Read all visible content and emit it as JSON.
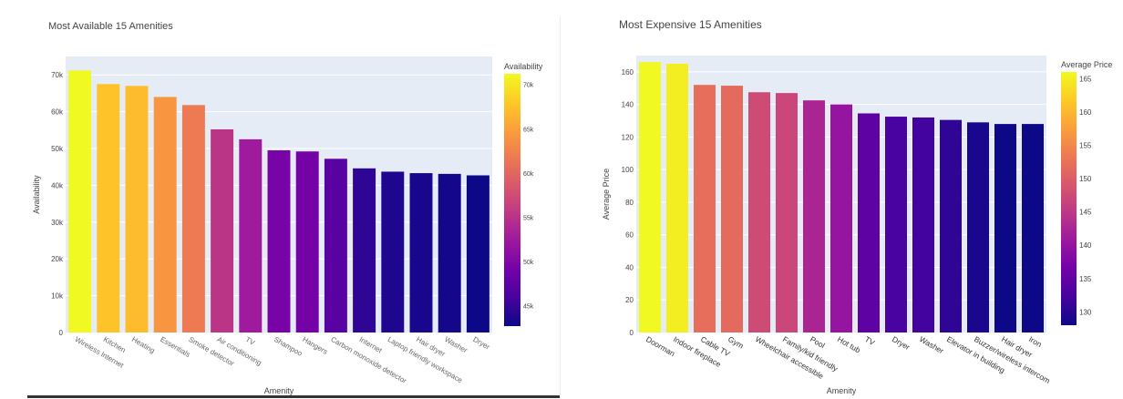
{
  "chart_data": [
    {
      "type": "bar",
      "title": "Most Available 15 Amenities",
      "xlabel": "Amenity",
      "ylabel": "Availability",
      "categories": [
        "Wireless Internet",
        "Kitchen",
        "Heating",
        "Essentials",
        "Smoke detector",
        "Air conditioning",
        "TV",
        "Shampoo",
        "Hangers",
        "Carbon monoxide detector",
        "Internet",
        "Laptop friendly workspace",
        "Hair dryer",
        "Washer",
        "Dryer"
      ],
      "values": [
        71200,
        67500,
        67000,
        64000,
        61800,
        55200,
        52500,
        49500,
        49200,
        47200,
        44600,
        43700,
        43300,
        43100,
        42700
      ],
      "ylim": [
        0,
        75000
      ],
      "yticks": [
        0,
        10000,
        20000,
        30000,
        40000,
        50000,
        60000,
        70000
      ],
      "ytick_labels": [
        "0",
        "10k",
        "20k",
        "30k",
        "40k",
        "50k",
        "60k",
        "70k"
      ],
      "colorbar": {
        "title": "Availability",
        "range": [
          42700,
          71200
        ],
        "ticks": [
          45000,
          50000,
          55000,
          60000,
          65000,
          70000
        ],
        "tick_labels": [
          "45k",
          "50k",
          "55k",
          "60k",
          "65k",
          "70k"
        ]
      },
      "colorscale": "plasma",
      "plot_bg": "#e5ecf6",
      "grid": true
    },
    {
      "type": "bar",
      "title": "Most Expensive 15 Amenities",
      "xlabel": "Amenity",
      "ylabel": "Average Price",
      "categories": [
        "Doorman",
        "Indoor fireplace",
        "Cable TV",
        "Gym",
        "Wheelchair accessible",
        "Family/kid friendly",
        "Pool",
        "Hot tub",
        "TV",
        "Dryer",
        "Washer",
        "Elevator in building",
        "Buzzer/wireless intercom",
        "Hair dryer",
        "Iron"
      ],
      "values": [
        166,
        165,
        152,
        151.5,
        147.5,
        147,
        142.5,
        140,
        134.5,
        132.5,
        132,
        130.5,
        129,
        128,
        128
      ],
      "ylim": [
        0,
        170
      ],
      "yticks": [
        0,
        20,
        40,
        60,
        80,
        100,
        120,
        140,
        160
      ],
      "ytick_labels": [
        "0",
        "20",
        "40",
        "60",
        "80",
        "100",
        "120",
        "140",
        "160"
      ],
      "colorbar": {
        "title": "Average Price",
        "range": [
          128,
          166
        ],
        "ticks": [
          130,
          135,
          140,
          145,
          150,
          155,
          160,
          165
        ],
        "tick_labels": [
          "130",
          "135",
          "140",
          "145",
          "150",
          "155",
          "160",
          "165"
        ]
      },
      "colorscale": "plasma",
      "plot_bg": "#e5ecf6",
      "grid": true
    }
  ]
}
